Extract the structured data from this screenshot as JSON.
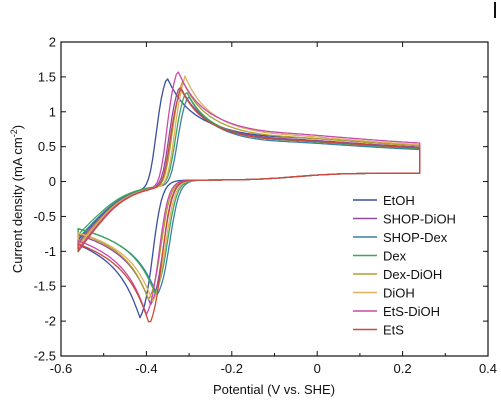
{
  "chart_data": {
    "type": "line",
    "title": "",
    "xlabel": "Potential (V vs. SHE)",
    "ylabel_main": "Current density (mA cm",
    "ylabel_sup": "-2",
    "ylabel_close": ")",
    "xlim": [
      -0.6,
      0.4
    ],
    "ylim": [
      -2.5,
      2
    ],
    "xticks": [
      -0.6,
      -0.4,
      -0.2,
      0,
      0.2,
      0.4
    ],
    "xtick_labels": [
      "-0.6",
      "-0.4",
      "-0.2",
      "0",
      "0.2",
      "0.4"
    ],
    "yticks": [
      2,
      1.5,
      1,
      0.5,
      0,
      -0.5,
      -1,
      -1.5,
      -2,
      -2.5
    ],
    "ytick_labels": [
      "2",
      "1.5",
      "1",
      "0.5",
      "0",
      "-0.5",
      "-1",
      "-1.5",
      "-2",
      "-2.5"
    ],
    "x_range": [
      -0.56,
      0.24
    ],
    "legend_position": "bottom-right",
    "grid": false,
    "series": [
      {
        "name": "EtOH",
        "color": "#3a4f9e",
        "e_pa": -0.355,
        "i_pa": 1.7,
        "e_pc": -0.415,
        "i_pc": -2.1,
        "i_start": -0.88
      },
      {
        "name": "SHOP-DiOH",
        "color": "#8e4a9e",
        "e_pa": -0.325,
        "i_pa": 1.55,
        "e_pc": -0.39,
        "i_pc": -1.9,
        "i_start": -0.92
      },
      {
        "name": "SHOP-Dex",
        "color": "#3b7fa8",
        "e_pa": -0.305,
        "i_pa": 1.38,
        "e_pc": -0.375,
        "i_pc": -1.75,
        "i_start": -0.86
      },
      {
        "name": "Dex",
        "color": "#3fa65a",
        "e_pa": -0.31,
        "i_pa": 1.45,
        "e_pc": -0.38,
        "i_pc": -1.72,
        "i_start": -0.8
      },
      {
        "name": "Dex-DiOH",
        "color": "#b0a030",
        "e_pa": -0.318,
        "i_pa": 1.62,
        "e_pc": -0.395,
        "i_pc": -1.82,
        "i_start": -0.95
      },
      {
        "name": "DiOH",
        "color": "#e0b060",
        "e_pa": -0.312,
        "i_pa": 1.68,
        "e_pc": -0.385,
        "i_pc": -1.85,
        "i_start": -0.98
      },
      {
        "name": "EtS-DiOH",
        "color": "#c94aa8",
        "e_pa": -0.33,
        "i_pa": 1.8,
        "e_pc": -0.4,
        "i_pc": -2.05,
        "i_start": -1.02
      },
      {
        "name": "EtS",
        "color": "#c84a3a",
        "e_pa": -0.322,
        "i_pa": 1.5,
        "e_pc": -0.393,
        "i_pc": -2.2,
        "i_start": -1.05
      }
    ]
  }
}
